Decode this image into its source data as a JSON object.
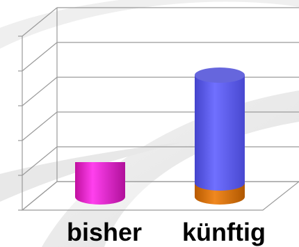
{
  "chart_data": {
    "type": "bar",
    "style": "3d-cylinder",
    "categories": [
      "bisher",
      "künftig"
    ],
    "series": [
      {
        "values": [
          1,
          0.4
        ],
        "color": "#e61ed2",
        "top_color": "#ff55ee"
      },
      {
        "values": [
          0,
          3.1
        ],
        "color": "#5555ee",
        "top_color": "#6666dd"
      }
    ],
    "stacked": true,
    "ylim": [
      0,
      5
    ],
    "grid": true,
    "legend": "none",
    "accent_colors": {
      "base_segment_series2": "#e07818"
    }
  }
}
